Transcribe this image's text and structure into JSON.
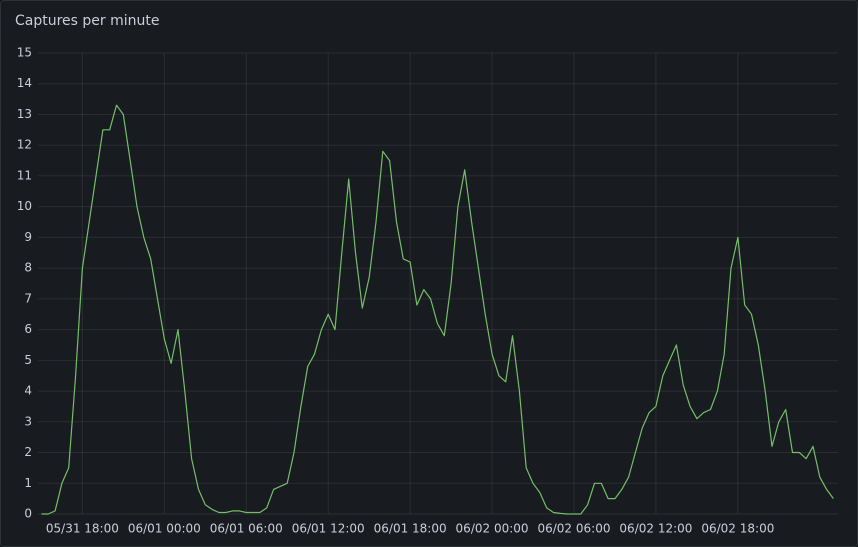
{
  "chart_data": {
    "type": "line",
    "title": "Captures per minute",
    "color": "#73bf69",
    "grid": true,
    "x": [
      "05/31 15:00",
      "05/31 15:30",
      "05/31 16:00",
      "05/31 16:30",
      "05/31 17:00",
      "05/31 17:30",
      "05/31 18:00",
      "05/31 18:30",
      "05/31 19:00",
      "05/31 19:30",
      "05/31 20:00",
      "05/31 20:30",
      "05/31 21:00",
      "05/31 21:30",
      "05/31 22:00",
      "05/31 22:30",
      "05/31 23:00",
      "05/31 23:30",
      "06/01 00:00",
      "06/01 00:30",
      "06/01 01:00",
      "06/01 01:30",
      "06/01 02:00",
      "06/01 02:30",
      "06/01 03:00",
      "06/01 03:30",
      "06/01 04:00",
      "06/01 04:30",
      "06/01 05:00",
      "06/01 05:30",
      "06/01 06:00",
      "06/01 06:30",
      "06/01 07:00",
      "06/01 07:30",
      "06/01 08:00",
      "06/01 08:30",
      "06/01 09:00",
      "06/01 09:30",
      "06/01 10:00",
      "06/01 10:30",
      "06/01 11:00",
      "06/01 11:30",
      "06/01 12:00",
      "06/01 12:30",
      "06/01 13:00",
      "06/01 13:30",
      "06/01 14:00",
      "06/01 14:30",
      "06/01 15:00",
      "06/01 15:30",
      "06/01 16:00",
      "06/01 16:30",
      "06/01 17:00",
      "06/01 17:30",
      "06/01 18:00",
      "06/01 18:30",
      "06/01 19:00",
      "06/01 19:30",
      "06/01 20:00",
      "06/01 20:30",
      "06/01 21:00",
      "06/01 21:30",
      "06/01 22:00",
      "06/01 22:30",
      "06/01 23:00",
      "06/01 23:30",
      "06/02 00:00",
      "06/02 00:30",
      "06/02 01:00",
      "06/02 01:30",
      "06/02 02:00",
      "06/02 02:30",
      "06/02 03:00",
      "06/02 03:30",
      "06/02 04:00",
      "06/02 04:30",
      "06/02 05:00",
      "06/02 05:30",
      "06/02 06:00",
      "06/02 06:30",
      "06/02 07:00",
      "06/02 07:30",
      "06/02 08:00",
      "06/02 08:30",
      "06/02 09:00",
      "06/02 09:30",
      "06/02 10:00",
      "06/02 10:30",
      "06/02 11:00",
      "06/02 11:30",
      "06/02 12:00",
      "06/02 12:30",
      "06/02 13:00",
      "06/02 13:30",
      "06/02 14:00",
      "06/02 14:30",
      "06/02 15:00",
      "06/02 15:30",
      "06/02 16:00",
      "06/02 16:30",
      "06/02 17:00",
      "06/02 17:30",
      "06/02 18:00",
      "06/02 18:30",
      "06/02 19:00",
      "06/02 19:30",
      "06/02 20:00",
      "06/02 20:30",
      "06/02 21:00",
      "06/02 21:30",
      "06/02 22:00",
      "06/02 22:30",
      "06/02 23:00",
      "06/02 23:30",
      "06/03 00:00",
      "06/03 00:30",
      "06/03 01:00"
    ],
    "values": [
      0,
      0,
      0.1,
      1.0,
      1.5,
      4.5,
      8,
      9.5,
      11,
      12.5,
      12.5,
      13.3,
      13,
      11.5,
      10,
      9,
      8.3,
      7,
      5.7,
      4.9,
      6.0,
      4.0,
      1.8,
      0.8,
      0.3,
      0.15,
      0.05,
      0.05,
      0.1,
      0.1,
      0.05,
      0.05,
      0.05,
      0.2,
      0.8,
      0.9,
      1.0,
      2.0,
      3.5,
      4.8,
      5.2,
      6.0,
      6.5,
      6.0,
      8.5,
      10.9,
      8.5,
      6.7,
      7.7,
      9.5,
      11.8,
      11.5,
      9.5,
      8.3,
      8.2,
      6.8,
      7.3,
      7.0,
      6.2,
      5.8,
      7.5,
      10.0,
      11.2,
      9.5,
      8.0,
      6.5,
      5.2,
      4.5,
      4.3,
      5.8,
      4.0,
      1.5,
      1.0,
      0.7,
      0.2,
      0.05,
      0.02,
      0,
      0,
      0,
      0.3,
      1.0,
      1.0,
      0.5,
      0.5,
      0.8,
      1.2,
      2.0,
      2.8,
      3.3,
      3.5,
      4.5,
      5.0,
      5.5,
      4.2,
      3.5,
      3.1,
      3.3,
      3.4,
      4.0,
      5.2,
      8.0,
      9.0,
      6.8,
      6.5,
      5.5,
      4.0,
      2.2,
      3.0,
      3.4,
      2.0,
      2.0,
      1.8,
      2.2,
      1.2,
      0.8,
      0.5
    ],
    "xlim": [
      "05/31 14:45",
      "06/03 01:20"
    ],
    "xticks": [
      "05/31 18:00",
      "06/01 00:00",
      "06/01 06:00",
      "06/01 12:00",
      "06/01 18:00",
      "06/02 00:00",
      "06/02 06:00",
      "06/02 12:00",
      "06/02 18:00"
    ],
    "ylim": [
      0,
      15
    ],
    "yticks": [
      0,
      1,
      2,
      3,
      4,
      5,
      6,
      7,
      8,
      9,
      10,
      11,
      12,
      13,
      14,
      15
    ]
  }
}
